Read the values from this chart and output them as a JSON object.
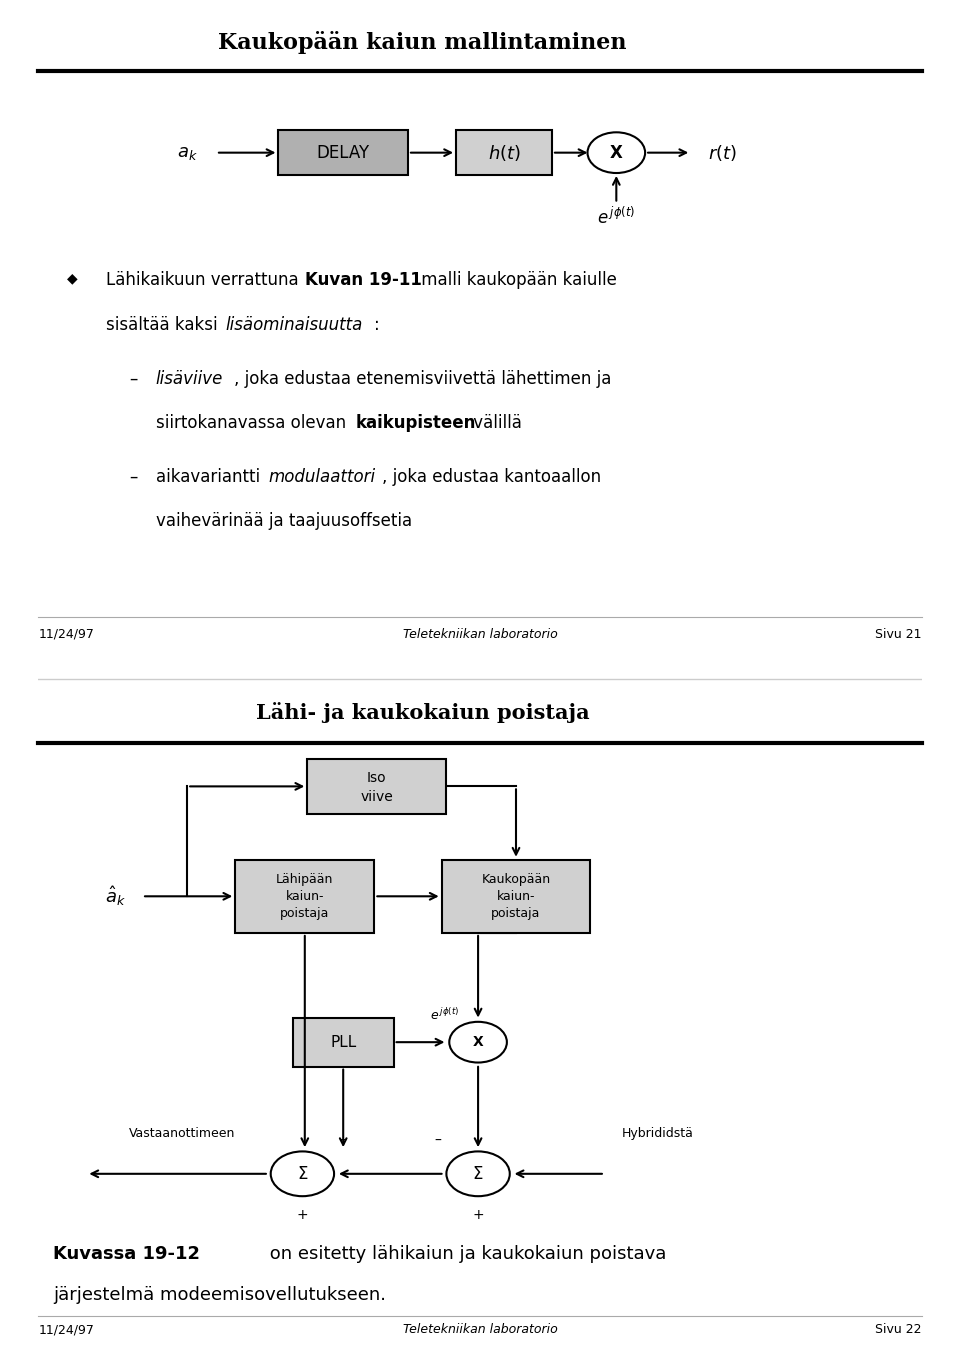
{
  "slide1_title": "Kaukopään kaiun mallintaminen",
  "slide1_footer_left": "11/24/97",
  "slide1_footer_center": "Teletekniikan laboratorio",
  "slide1_footer_right": "Sivu 21",
  "slide2_title": "Lähi- ja kaukokaiun poistaja",
  "slide2_footer_left": "11/24/97",
  "slide2_footer_center": "Teletekniikan laboratorio",
  "slide2_footer_right": "Sivu 22",
  "bg_color": "#ffffff",
  "box_dark": "#b0b0b0",
  "box_light": "#d0d0d0",
  "text_color": "#000000"
}
